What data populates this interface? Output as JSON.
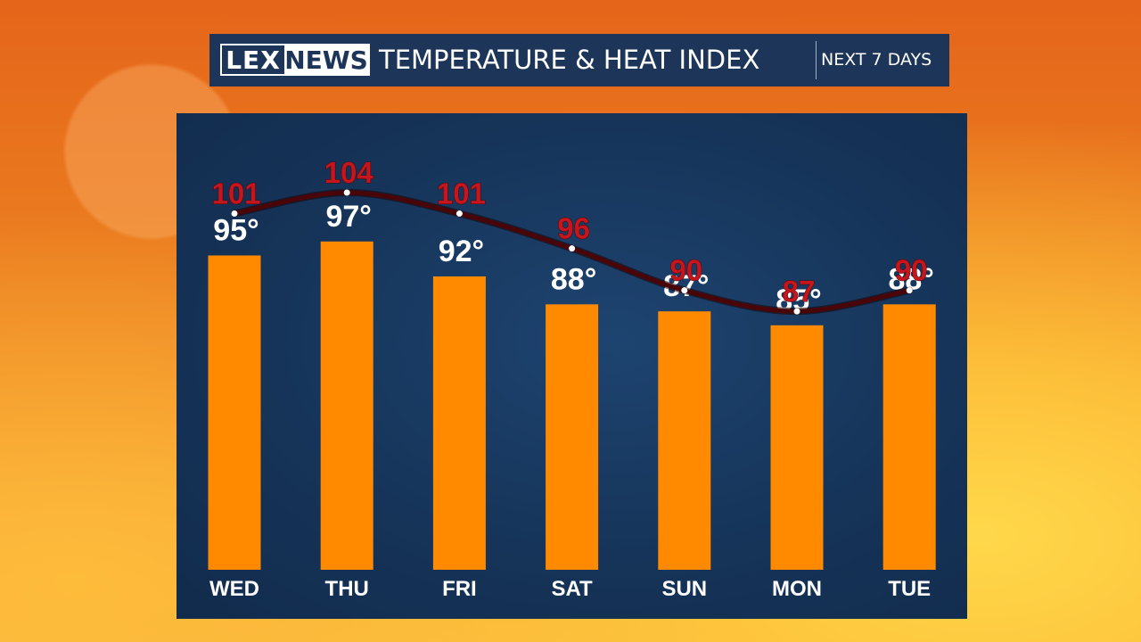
{
  "header": {
    "logo_left": "LEX",
    "logo_right": "NEWS",
    "title": "TEMPERATURE & HEAT INDEX",
    "subtitle": "NEXT 7 DAYS"
  },
  "colors": {
    "bar": "#ff8a00",
    "heat_index_line": "#4a0508",
    "heat_index_text": "#c4161c",
    "panel": "#163459",
    "header_bg": "#1c3558"
  },
  "chart_data": {
    "type": "bar",
    "categories": [
      "WED",
      "THU",
      "FRI",
      "SAT",
      "SUN",
      "MON",
      "TUE"
    ],
    "series": [
      {
        "values": [
          95,
          97,
          92,
          88,
          87,
          85,
          88
        ],
        "value_labels": [
          "95°",
          "97°",
          "92°",
          "88°",
          "87°",
          "85°",
          "88°"
        ]
      },
      {
        "type": "line",
        "values": [
          101,
          104,
          101,
          96,
          90,
          87,
          90
        ],
        "value_labels": [
          "101",
          "104",
          "101",
          "96",
          "90",
          "87",
          "90"
        ]
      }
    ],
    "ylim": [
      50,
      110
    ],
    "grid": false,
    "legend": "none"
  }
}
